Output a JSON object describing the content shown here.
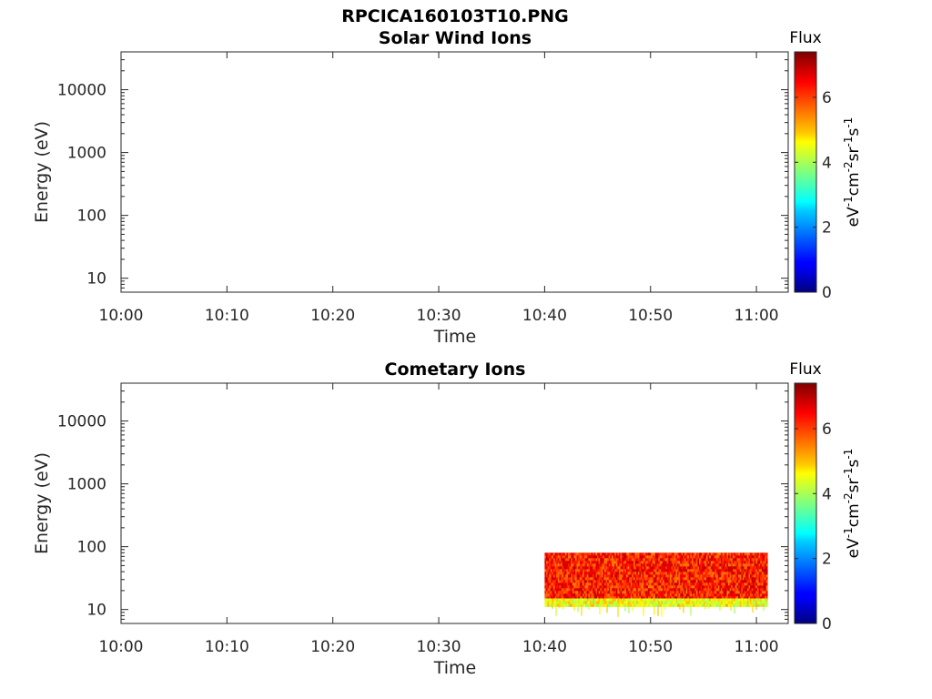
{
  "figure": {
    "title": "RPCICA160103T10.PNG"
  },
  "colorbar": {
    "label": "Flux",
    "unit_base": [
      "eV",
      "cm",
      "sr",
      "s"
    ],
    "unit_exps": [
      "-1",
      "-2",
      "-1",
      "-1"
    ],
    "ticks": [
      "0",
      "2",
      "4",
      "6"
    ],
    "range": [
      0,
      7.4
    ],
    "colormap": "jet"
  },
  "chart_data": [
    {
      "type": "heatmap",
      "title": "Solar Wind Ions",
      "xlabel": "Time",
      "ylabel": "Energy (eV)",
      "xticks": [
        "10:00",
        "10:10",
        "10:20",
        "10:30",
        "10:40",
        "10:50",
        "11:00"
      ],
      "xlim": [
        "10:00",
        "11:03"
      ],
      "yscale": "log",
      "yticks": [
        "10",
        "100",
        "1000",
        "10000"
      ],
      "ylim": [
        6,
        40000
      ],
      "grid": false,
      "regions": []
    },
    {
      "type": "heatmap",
      "title": "Cometary Ions",
      "xlabel": "Time",
      "ylabel": "Energy (eV)",
      "xticks": [
        "10:00",
        "10:10",
        "10:20",
        "10:30",
        "10:40",
        "10:50",
        "11:00"
      ],
      "xlim": [
        "10:00",
        "11:03"
      ],
      "yscale": "log",
      "yticks": [
        "10",
        "100",
        "1000",
        "10000"
      ],
      "ylim": [
        6,
        40000
      ],
      "grid": false,
      "regions": [
        {
          "time_start": "10:40",
          "time_end": "11:01",
          "energy_low": 15,
          "energy_high": 80,
          "flux_low": 5.5,
          "flux_high": 7.0
        },
        {
          "time_start": "10:40",
          "time_end": "11:01",
          "energy_low": 12,
          "energy_high": 15,
          "flux_low": 3.8,
          "flux_high": 5.2
        }
      ]
    }
  ]
}
